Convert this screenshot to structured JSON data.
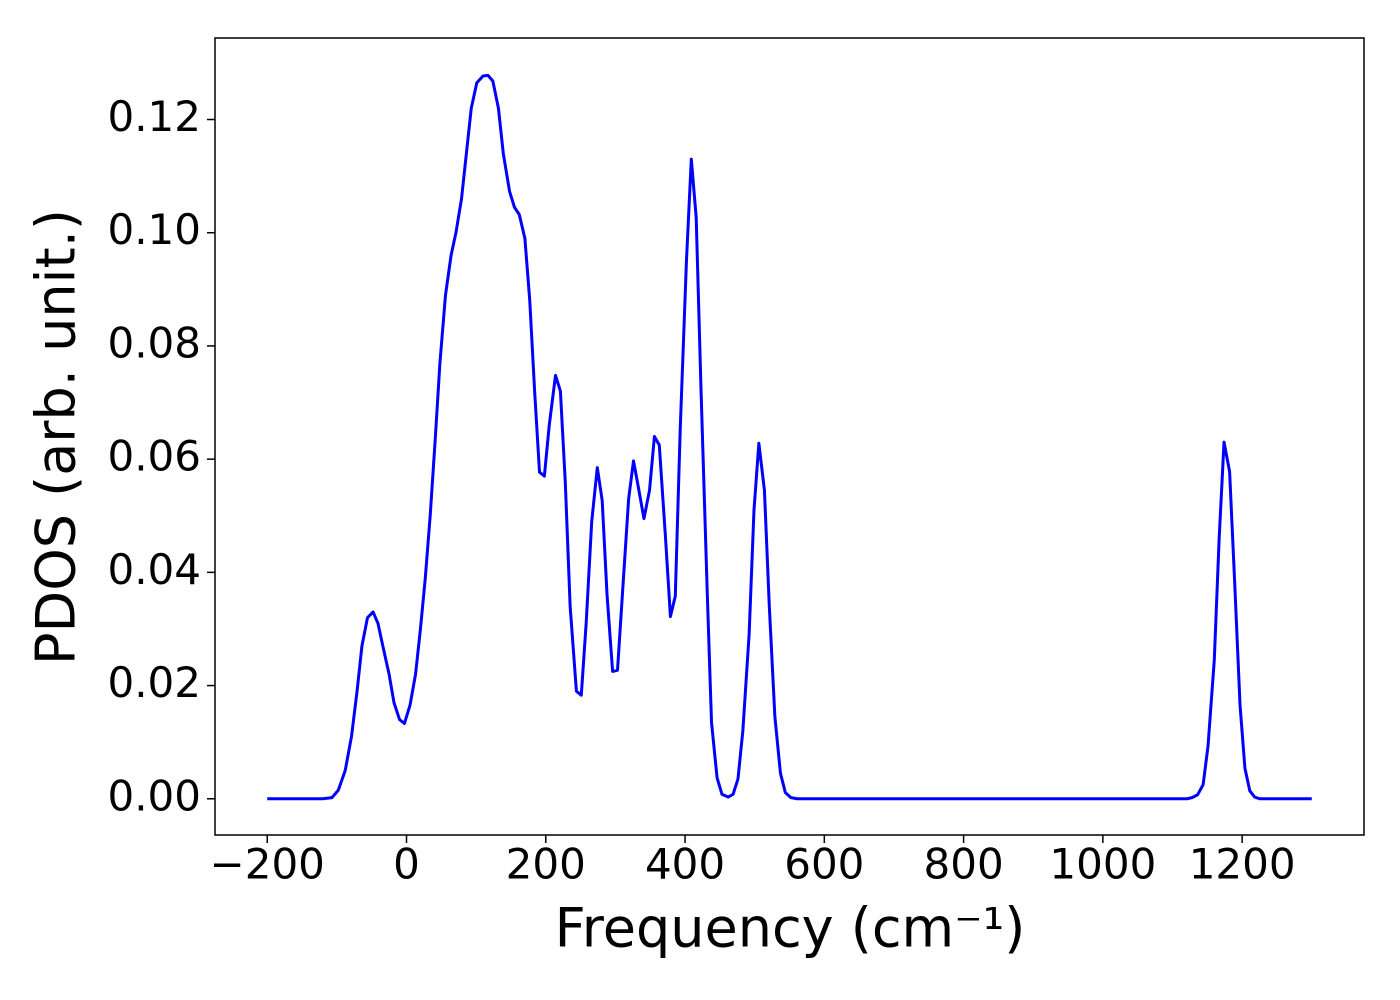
{
  "chart_data": {
    "type": "line",
    "xlabel": "Frequency (cm⁻¹)",
    "ylabel": "PDOS (arb. unit.)",
    "x": [
      -200,
      -150,
      -120,
      -107,
      -98,
      -88,
      -79,
      -71,
      -64,
      -56,
      -48,
      -41,
      -34,
      -25,
      -18,
      -10,
      -3,
      5,
      13,
      20,
      27,
      34,
      41,
      48,
      56,
      64,
      71,
      79,
      86,
      93,
      101,
      110,
      117,
      124,
      132,
      139,
      148,
      155,
      162,
      170,
      177,
      184,
      191,
      198,
      205,
      214,
      221,
      228,
      235,
      244,
      251,
      258,
      266,
      274,
      281,
      288,
      296,
      303,
      310,
      319,
      326,
      333,
      341,
      349,
      356,
      363,
      372,
      379,
      386,
      393,
      402,
      409,
      416,
      423,
      432,
      438,
      446,
      453,
      462,
      469,
      476,
      483,
      492,
      499,
      506,
      514,
      521,
      529,
      537,
      544,
      552,
      561,
      800,
      1121,
      1128,
      1136,
      1144,
      1151,
      1160,
      1167,
      1174,
      1182,
      1189,
      1197,
      1204,
      1211,
      1218,
      1225,
      1300
    ],
    "series": [
      {
        "color": "#0000ff",
        "values": [
          0,
          0,
          0,
          0.0002,
          0.0015,
          0.005,
          0.011,
          0.019,
          0.027,
          0.032,
          0.033,
          0.031,
          0.027,
          0.022,
          0.017,
          0.014,
          0.0133,
          0.0165,
          0.022,
          0.03,
          0.039,
          0.05,
          0.063,
          0.077,
          0.089,
          0.096,
          0.1,
          0.106,
          0.114,
          0.122,
          0.1265,
          0.1277,
          0.1278,
          0.1268,
          0.122,
          0.114,
          0.1073,
          0.1045,
          0.1032,
          0.099,
          0.088,
          0.072,
          0.0577,
          0.057,
          0.066,
          0.0748,
          0.072,
          0.056,
          0.034,
          0.019,
          0.0183,
          0.031,
          0.049,
          0.0585,
          0.0527,
          0.036,
          0.0225,
          0.0227,
          0.036,
          0.053,
          0.0597,
          0.055,
          0.0495,
          0.0545,
          0.064,
          0.0625,
          0.046,
          0.0322,
          0.0358,
          0.065,
          0.095,
          0.113,
          0.1027,
          0.072,
          0.036,
          0.0135,
          0.0037,
          0.0008,
          0.0003,
          0.0008,
          0.0035,
          0.012,
          0.029,
          0.051,
          0.0628,
          0.0545,
          0.034,
          0.0145,
          0.0045,
          0.0011,
          0.0002,
          0,
          0,
          0,
          0.0002,
          0.0007,
          0.0025,
          0.0093,
          0.0245,
          0.046,
          0.063,
          0.0578,
          0.039,
          0.0165,
          0.0054,
          0.0014,
          0.0003,
          0,
          0
        ]
      }
    ],
    "xlim": [
      -275,
      1375
    ],
    "ylim": [
      -0.0064,
      0.1344
    ],
    "xticks": [
      {
        "value": -200,
        "label": "−200"
      },
      0,
      200,
      400,
      600,
      800,
      1000,
      1200
    ],
    "yticks": [
      {
        "value": 0,
        "label": "0.00"
      },
      {
        "value": 0.02,
        "label": "0.02"
      },
      {
        "value": 0.04,
        "label": "0.04"
      },
      {
        "value": 0.06,
        "label": "0.06"
      },
      {
        "value": 0.08,
        "label": "0.08"
      },
      {
        "value": 0.1,
        "label": "0.10"
      },
      {
        "value": 0.12,
        "label": "0.12"
      }
    ],
    "grid": false
  }
}
